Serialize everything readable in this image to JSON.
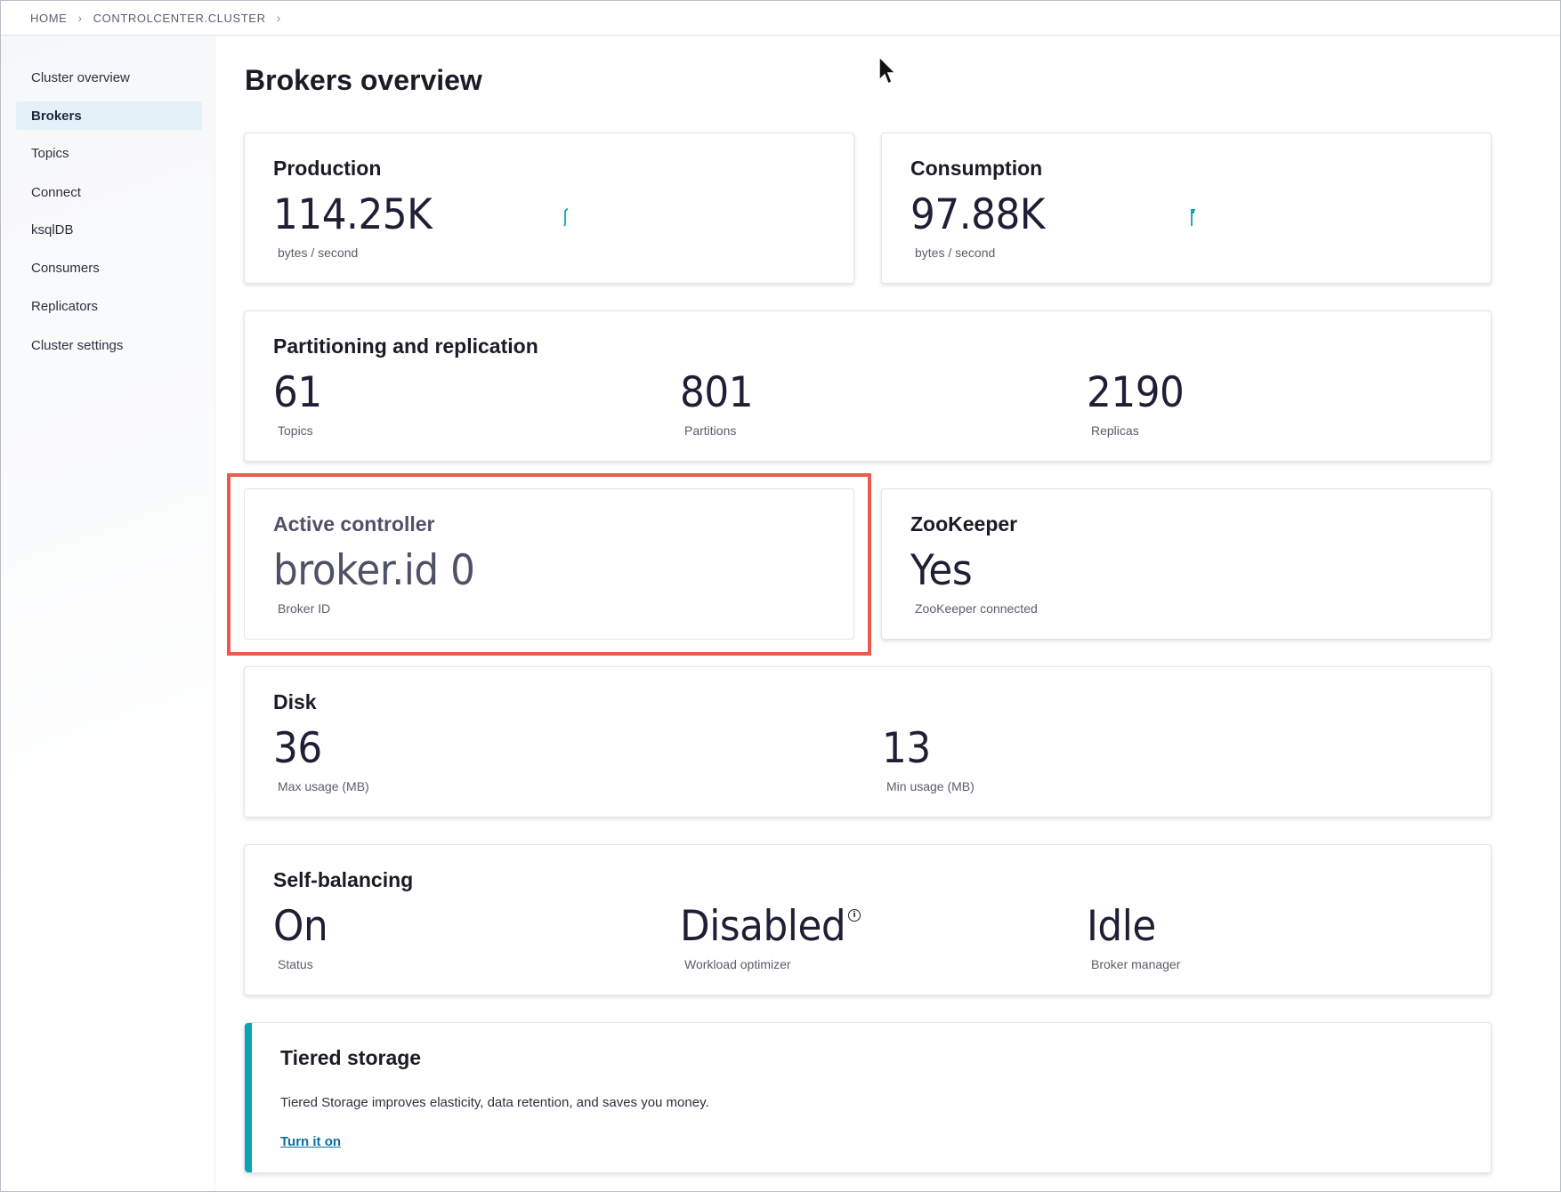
{
  "breadcrumb": {
    "items": [
      "HOME",
      "CONTROLCENTER.CLUSTER"
    ]
  },
  "sidebar": {
    "items": [
      {
        "label": "Cluster overview"
      },
      {
        "label": "Brokers"
      },
      {
        "label": "Topics"
      },
      {
        "label": "Connect"
      },
      {
        "label": "ksqlDB"
      },
      {
        "label": "Consumers"
      },
      {
        "label": "Replicators"
      },
      {
        "label": "Cluster settings"
      }
    ],
    "active": "Brokers"
  },
  "page": {
    "title": "Brokers overview"
  },
  "production": {
    "title": "Production",
    "value": "114.25K",
    "unit": "bytes / second"
  },
  "consumption": {
    "title": "Consumption",
    "value": "97.88K",
    "unit": "bytes / second"
  },
  "partitioning": {
    "title": "Partitioning and replication",
    "topics_value": "61",
    "topics_label": "Topics",
    "partitions_value": "801",
    "partitions_label": "Partitions",
    "replicas_value": "2190",
    "replicas_label": "Replicas"
  },
  "controller": {
    "title": "Active controller",
    "value": "broker.id 0",
    "label": "Broker ID"
  },
  "zookeeper": {
    "title": "ZooKeeper",
    "value": "Yes",
    "label": "ZooKeeper connected"
  },
  "disk": {
    "title": "Disk",
    "max_value": "36",
    "max_label": "Max usage (MB)",
    "min_value": "13",
    "min_label": "Min usage (MB)"
  },
  "self_balancing": {
    "title": "Self-balancing",
    "status_value": "On",
    "status_label": "Status",
    "optimizer_value": "Disabled",
    "optimizer_label": "Workload optimizer",
    "manager_value": "Idle",
    "manager_label": "Broker manager"
  },
  "tiered_storage": {
    "title": "Tiered storage",
    "description": "Tiered Storage improves elasticity, data retention, and saves you money.",
    "link": "Turn it on"
  },
  "colors": {
    "accent": "#0aa4b0",
    "highlight": "#ec5a4e",
    "active_nav_bg": "#e5f1f8",
    "link": "#0b6fa8"
  }
}
